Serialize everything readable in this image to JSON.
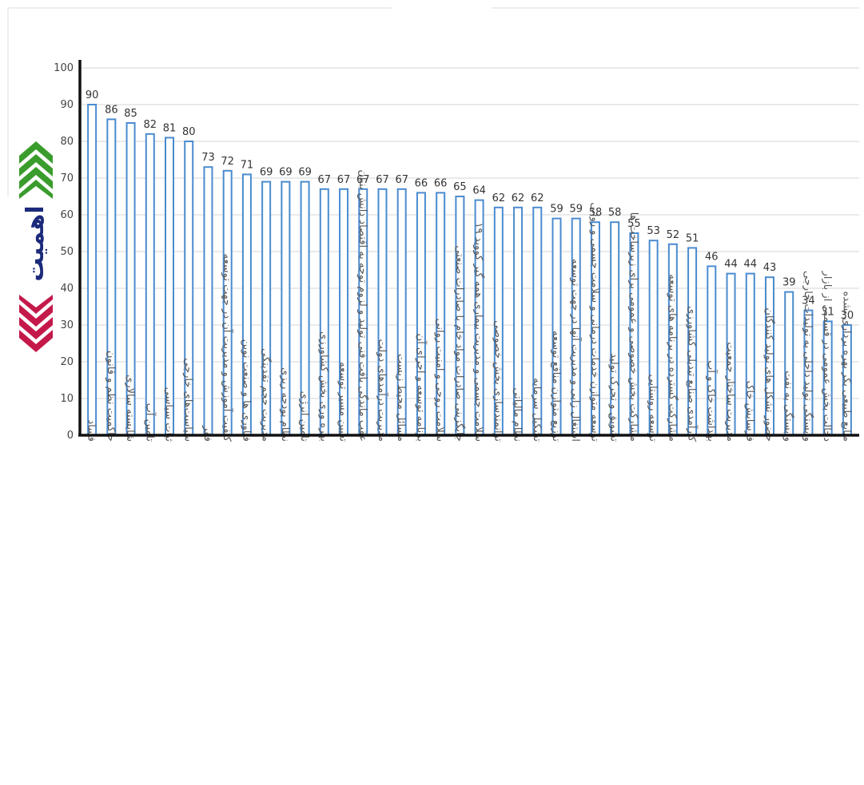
{
  "side_title": "اهمیت",
  "colors": {
    "bar_stroke": "#4a8bd0",
    "up_arrows": "#3a9c2c",
    "down_arrows": "#c4194a",
    "title_text": "#1b2a7a"
  },
  "chart_data": {
    "type": "bar",
    "title": "",
    "xlabel": "",
    "ylabel": "",
    "ylim": [
      0,
      100
    ],
    "yticks": [
      0,
      10,
      20,
      30,
      40,
      50,
      60,
      70,
      80,
      90,
      100
    ],
    "grid": true,
    "categories": [
      "فساد",
      "حاکمیت نظم و قانون",
      "شایسته سالاری",
      "تامین آب",
      "ثبات سیاسی",
      "سیاست‌های خارجی",
      "فقر",
      "کیفیت آموزش و مدیریت آن در جهت توسعه",
      "فناوری ها و صنعت نوین",
      "مدیریت حجم تقدینگی",
      "نظام بودجه ریزی",
      "تامین انرژی",
      "بهره وری بخش کشاورزی",
      "تعیین مسیر توسعه",
      "عقب ماندگی بافت فنی تولید و لزوم توجه به اقتصاد دانش بنیان",
      "مدیریت درآمدهای دولت",
      "مسائل محیط زیست",
      "برنامه توسعه و اجرای آن",
      "سلامت روحی و امنیت روانی",
      "جایگزینی صادرات مواد خام با صادرات صنعتی",
      "سلامت جسمی و مدیریت بیماری همه گیر کووید ۱۹",
      "توانمندسازی بخش خصوصی",
      "نظام مالیاتی",
      "تشکیل سرمایه",
      "توزیع متوازن منافع توسعه",
      "اشتغال زایی و مدیریت آنها در جهت توسعه",
      "توسعه متوازن خدمات درمانی و سلامت جسمی و روانی",
      "تشویق و تحرک تولید",
      "مشارکت بخش خصوصی و عمومی برای زیرساخت ها",
      "توسعه روستایی",
      "مشارکت گسترده در برنامه های توسعه",
      "کارآمدی صنایع تبدیلی کشاورزی",
      "بهداشت خاک و آب",
      "مدیریت ساختار جمعیت",
      "فرسایش خاک",
      "حضور تشکل های تولید کنندگان",
      "وابستگی به نفت",
      "وابستگی تولید داخلی به تولیدات خارجی",
      "دخالت بخش عمومی در قسمتی از بازار",
      "منابع طبیعی بکر بهره برداری نشده"
    ],
    "values": [
      90,
      86,
      85,
      82,
      81,
      80,
      73,
      72,
      71,
      69,
      69,
      69,
      67,
      67,
      67,
      67,
      67,
      66,
      66,
      65,
      64,
      62,
      62,
      62,
      59,
      59,
      58,
      58,
      55,
      53,
      52,
      51,
      46,
      44,
      44,
      43,
      39,
      34,
      31,
      30
    ]
  }
}
